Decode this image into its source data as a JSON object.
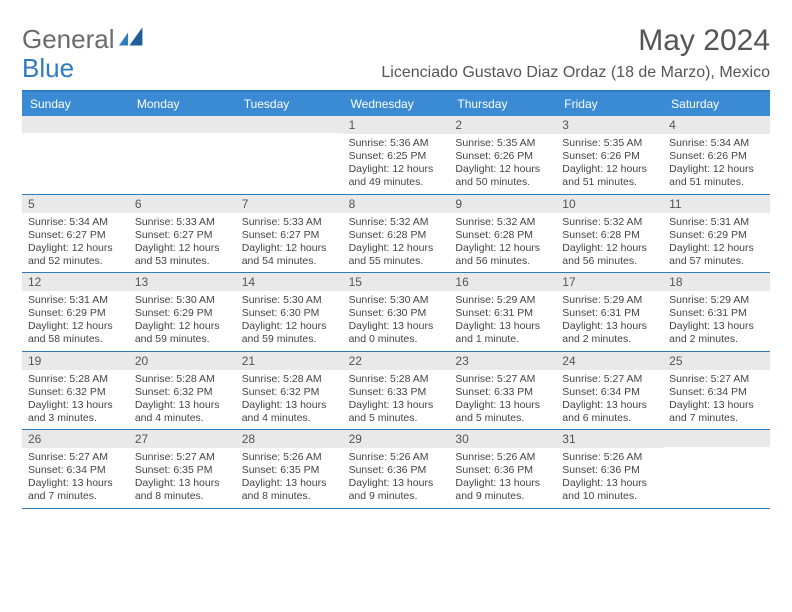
{
  "logo": {
    "text1": "General",
    "text2": "Blue"
  },
  "title": "May 2024",
  "subtitle": "Licenciado Gustavo Diaz Ordaz (18 de Marzo), Mexico",
  "daynames": [
    "Sunday",
    "Monday",
    "Tuesday",
    "Wednesday",
    "Thursday",
    "Friday",
    "Saturday"
  ],
  "colors": {
    "header_bg": "#3b8bd4",
    "accent_line": "#2f7bbf",
    "date_bg": "#e9e9e9",
    "title_color": "#555555"
  },
  "weeks": [
    [
      {
        "date": "",
        "sunrise": "",
        "sunset": "",
        "daylight": ""
      },
      {
        "date": "",
        "sunrise": "",
        "sunset": "",
        "daylight": ""
      },
      {
        "date": "",
        "sunrise": "",
        "sunset": "",
        "daylight": ""
      },
      {
        "date": "1",
        "sunrise": "Sunrise: 5:36 AM",
        "sunset": "Sunset: 6:25 PM",
        "daylight": "Daylight: 12 hours and 49 minutes."
      },
      {
        "date": "2",
        "sunrise": "Sunrise: 5:35 AM",
        "sunset": "Sunset: 6:26 PM",
        "daylight": "Daylight: 12 hours and 50 minutes."
      },
      {
        "date": "3",
        "sunrise": "Sunrise: 5:35 AM",
        "sunset": "Sunset: 6:26 PM",
        "daylight": "Daylight: 12 hours and 51 minutes."
      },
      {
        "date": "4",
        "sunrise": "Sunrise: 5:34 AM",
        "sunset": "Sunset: 6:26 PM",
        "daylight": "Daylight: 12 hours and 51 minutes."
      }
    ],
    [
      {
        "date": "5",
        "sunrise": "Sunrise: 5:34 AM",
        "sunset": "Sunset: 6:27 PM",
        "daylight": "Daylight: 12 hours and 52 minutes."
      },
      {
        "date": "6",
        "sunrise": "Sunrise: 5:33 AM",
        "sunset": "Sunset: 6:27 PM",
        "daylight": "Daylight: 12 hours and 53 minutes."
      },
      {
        "date": "7",
        "sunrise": "Sunrise: 5:33 AM",
        "sunset": "Sunset: 6:27 PM",
        "daylight": "Daylight: 12 hours and 54 minutes."
      },
      {
        "date": "8",
        "sunrise": "Sunrise: 5:32 AM",
        "sunset": "Sunset: 6:28 PM",
        "daylight": "Daylight: 12 hours and 55 minutes."
      },
      {
        "date": "9",
        "sunrise": "Sunrise: 5:32 AM",
        "sunset": "Sunset: 6:28 PM",
        "daylight": "Daylight: 12 hours and 56 minutes."
      },
      {
        "date": "10",
        "sunrise": "Sunrise: 5:32 AM",
        "sunset": "Sunset: 6:28 PM",
        "daylight": "Daylight: 12 hours and 56 minutes."
      },
      {
        "date": "11",
        "sunrise": "Sunrise: 5:31 AM",
        "sunset": "Sunset: 6:29 PM",
        "daylight": "Daylight: 12 hours and 57 minutes."
      }
    ],
    [
      {
        "date": "12",
        "sunrise": "Sunrise: 5:31 AM",
        "sunset": "Sunset: 6:29 PM",
        "daylight": "Daylight: 12 hours and 58 minutes."
      },
      {
        "date": "13",
        "sunrise": "Sunrise: 5:30 AM",
        "sunset": "Sunset: 6:29 PM",
        "daylight": "Daylight: 12 hours and 59 minutes."
      },
      {
        "date": "14",
        "sunrise": "Sunrise: 5:30 AM",
        "sunset": "Sunset: 6:30 PM",
        "daylight": "Daylight: 12 hours and 59 minutes."
      },
      {
        "date": "15",
        "sunrise": "Sunrise: 5:30 AM",
        "sunset": "Sunset: 6:30 PM",
        "daylight": "Daylight: 13 hours and 0 minutes."
      },
      {
        "date": "16",
        "sunrise": "Sunrise: 5:29 AM",
        "sunset": "Sunset: 6:31 PM",
        "daylight": "Daylight: 13 hours and 1 minute."
      },
      {
        "date": "17",
        "sunrise": "Sunrise: 5:29 AM",
        "sunset": "Sunset: 6:31 PM",
        "daylight": "Daylight: 13 hours and 2 minutes."
      },
      {
        "date": "18",
        "sunrise": "Sunrise: 5:29 AM",
        "sunset": "Sunset: 6:31 PM",
        "daylight": "Daylight: 13 hours and 2 minutes."
      }
    ],
    [
      {
        "date": "19",
        "sunrise": "Sunrise: 5:28 AM",
        "sunset": "Sunset: 6:32 PM",
        "daylight": "Daylight: 13 hours and 3 minutes."
      },
      {
        "date": "20",
        "sunrise": "Sunrise: 5:28 AM",
        "sunset": "Sunset: 6:32 PM",
        "daylight": "Daylight: 13 hours and 4 minutes."
      },
      {
        "date": "21",
        "sunrise": "Sunrise: 5:28 AM",
        "sunset": "Sunset: 6:32 PM",
        "daylight": "Daylight: 13 hours and 4 minutes."
      },
      {
        "date": "22",
        "sunrise": "Sunrise: 5:28 AM",
        "sunset": "Sunset: 6:33 PM",
        "daylight": "Daylight: 13 hours and 5 minutes."
      },
      {
        "date": "23",
        "sunrise": "Sunrise: 5:27 AM",
        "sunset": "Sunset: 6:33 PM",
        "daylight": "Daylight: 13 hours and 5 minutes."
      },
      {
        "date": "24",
        "sunrise": "Sunrise: 5:27 AM",
        "sunset": "Sunset: 6:34 PM",
        "daylight": "Daylight: 13 hours and 6 minutes."
      },
      {
        "date": "25",
        "sunrise": "Sunrise: 5:27 AM",
        "sunset": "Sunset: 6:34 PM",
        "daylight": "Daylight: 13 hours and 7 minutes."
      }
    ],
    [
      {
        "date": "26",
        "sunrise": "Sunrise: 5:27 AM",
        "sunset": "Sunset: 6:34 PM",
        "daylight": "Daylight: 13 hours and 7 minutes."
      },
      {
        "date": "27",
        "sunrise": "Sunrise: 5:27 AM",
        "sunset": "Sunset: 6:35 PM",
        "daylight": "Daylight: 13 hours and 8 minutes."
      },
      {
        "date": "28",
        "sunrise": "Sunrise: 5:26 AM",
        "sunset": "Sunset: 6:35 PM",
        "daylight": "Daylight: 13 hours and 8 minutes."
      },
      {
        "date": "29",
        "sunrise": "Sunrise: 5:26 AM",
        "sunset": "Sunset: 6:36 PM",
        "daylight": "Daylight: 13 hours and 9 minutes."
      },
      {
        "date": "30",
        "sunrise": "Sunrise: 5:26 AM",
        "sunset": "Sunset: 6:36 PM",
        "daylight": "Daylight: 13 hours and 9 minutes."
      },
      {
        "date": "31",
        "sunrise": "Sunrise: 5:26 AM",
        "sunset": "Sunset: 6:36 PM",
        "daylight": "Daylight: 13 hours and 10 minutes."
      },
      {
        "date": "",
        "sunrise": "",
        "sunset": "",
        "daylight": ""
      }
    ]
  ]
}
